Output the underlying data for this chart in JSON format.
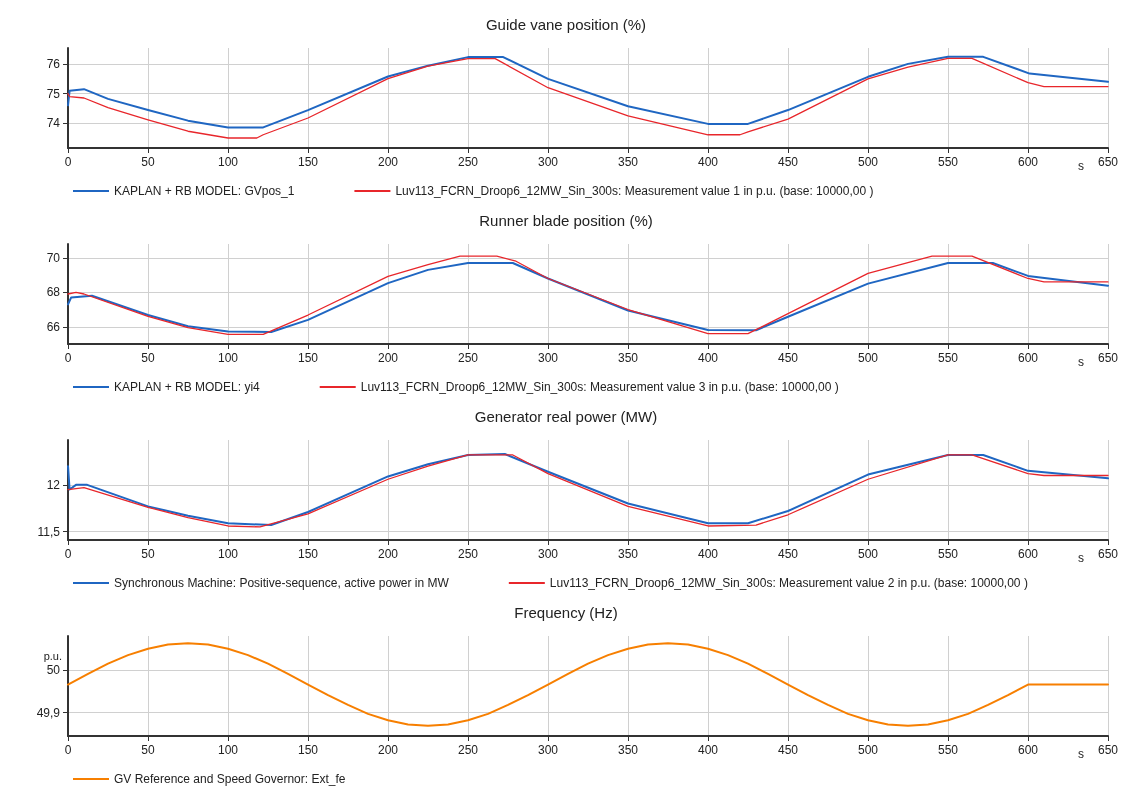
{
  "chart_data": [
    {
      "type": "line",
      "title": "Guide vane position (%)",
      "xlabel": "s",
      "xlim": [
        0,
        650
      ],
      "xticks": [
        0,
        50,
        100,
        150,
        200,
        250,
        300,
        350,
        400,
        450,
        500,
        550,
        600,
        650
      ],
      "ylim": [
        73.15,
        76.55
      ],
      "yticks": [
        74,
        75,
        76
      ],
      "grid": true,
      "legend": "bottom",
      "series": [
        {
          "name": "KAPLAN + RB MODEL: GVpos_1",
          "color": "#1f66c2",
          "x": [
            0,
            1,
            10,
            25,
            50,
            75,
            100,
            122,
            150,
            200,
            225,
            250,
            272,
            300,
            350,
            400,
            425,
            450,
            500,
            525,
            550,
            572,
            601,
            650
          ],
          "values": [
            74.6,
            75.1,
            75.15,
            74.82,
            74.44,
            74.08,
            73.85,
            73.85,
            74.44,
            75.58,
            75.95,
            76.24,
            76.24,
            75.5,
            74.57,
            73.97,
            73.97,
            74.44,
            75.57,
            76.01,
            76.25,
            76.25,
            75.68,
            75.4
          ]
        },
        {
          "name": "Luv113_FCRN_Droop6_12MW_Sin_300s: Measurement value 1 in p.u. (base: 10000,00 )",
          "color": "#e8262b",
          "x": [
            0,
            1,
            10,
            25,
            50,
            75,
            100,
            118,
            122,
            150,
            200,
            225,
            250,
            267,
            300,
            350,
            400,
            420,
            425,
            450,
            500,
            525,
            550,
            565,
            600,
            610,
            650
          ],
          "values": [
            75.0,
            74.9,
            74.85,
            74.52,
            74.11,
            73.72,
            73.49,
            73.49,
            73.6,
            74.17,
            75.51,
            75.93,
            76.19,
            76.19,
            75.2,
            74.24,
            73.6,
            73.6,
            73.7,
            74.13,
            75.5,
            75.9,
            76.2,
            76.2,
            75.37,
            75.24,
            75.24
          ]
        }
      ]
    },
    {
      "type": "line",
      "title": "Runner blade position (%)",
      "xlabel": "s",
      "xlim": [
        0,
        650
      ],
      "xticks": [
        0,
        50,
        100,
        150,
        200,
        250,
        300,
        350,
        400,
        450,
        500,
        550,
        600,
        650
      ],
      "ylim": [
        65,
        70.8
      ],
      "yticks": [
        66,
        68,
        70
      ],
      "grid": true,
      "legend": "bottom",
      "series": [
        {
          "name": "KAPLAN + RB MODEL: yi4",
          "color": "#1f66c2",
          "x": [
            0,
            2,
            15,
            50,
            75,
            100,
            127,
            150,
            200,
            225,
            250,
            278,
            300,
            350,
            400,
            430,
            450,
            500,
            550,
            578,
            600,
            650
          ],
          "values": [
            67.3,
            67.7,
            67.8,
            66.68,
            66.03,
            65.72,
            65.7,
            66.4,
            68.53,
            69.3,
            69.7,
            69.7,
            68.8,
            66.94,
            65.81,
            65.8,
            66.58,
            68.5,
            69.7,
            69.7,
            68.95,
            68.38
          ]
        },
        {
          "name": "Luv113_FCRN_Droop6_12MW_Sin_300s: Measurement value 3 in p.u. (base: 10000,00 )",
          "color": "#e8262b",
          "x": [
            0,
            5,
            10,
            50,
            75,
            100,
            122,
            150,
            200,
            225,
            245,
            268,
            280,
            300,
            350,
            400,
            425,
            450,
            500,
            540,
            565,
            600,
            610,
            650
          ],
          "values": [
            67.9,
            68.0,
            67.9,
            66.6,
            65.95,
            65.56,
            65.56,
            66.68,
            68.92,
            69.6,
            70.1,
            70.1,
            69.8,
            68.8,
            67.0,
            65.6,
            65.6,
            66.76,
            69.1,
            70.1,
            70.1,
            68.8,
            68.6,
            68.6
          ]
        }
      ]
    },
    {
      "type": "line",
      "title": "Generator real power (MW)",
      "xlabel": "s",
      "xlim": [
        0,
        650
      ],
      "xticks": [
        0,
        50,
        100,
        150,
        200,
        250,
        300,
        350,
        400,
        450,
        500,
        550,
        600,
        650
      ],
      "ylim": [
        11.41,
        12.48
      ],
      "yticks": [
        {
          "value": 11.5,
          "label": "11,5"
        },
        12
      ],
      "grid": true,
      "legend": "bottom",
      "series": [
        {
          "name": "Synchronous Machine: Positive-sequence, active power in MW",
          "color": "#1f66c2",
          "x": [
            0,
            1,
            5,
            12,
            50,
            75,
            100,
            127,
            150,
            200,
            225,
            250,
            273,
            300,
            350,
            400,
            425,
            450,
            500,
            550,
            572,
            600,
            650
          ],
          "values": [
            12.2,
            11.95,
            12.0,
            12.0,
            11.77,
            11.67,
            11.59,
            11.57,
            11.71,
            12.09,
            12.22,
            12.32,
            12.33,
            12.14,
            11.8,
            11.59,
            11.59,
            11.72,
            12.11,
            12.32,
            12.32,
            12.15,
            12.07
          ]
        },
        {
          "name": "Luv113_FCRN_Droop6_12MW_Sin_300s: Measurement value 2 in p.u. (base: 10000,00 )",
          "color": "#e8262b",
          "x": [
            0,
            10,
            50,
            75,
            100,
            120,
            150,
            200,
            225,
            250,
            278,
            300,
            350,
            400,
            430,
            450,
            500,
            550,
            565,
            600,
            610,
            650
          ],
          "values": [
            11.95,
            11.97,
            11.76,
            11.65,
            11.56,
            11.55,
            11.69,
            12.06,
            12.2,
            12.32,
            12.32,
            12.12,
            11.77,
            11.56,
            11.57,
            11.68,
            12.06,
            12.32,
            12.32,
            12.12,
            12.1,
            12.1
          ]
        }
      ]
    },
    {
      "type": "line",
      "title": "Frequency (Hz)",
      "xlabel": "s",
      "ylabel": "p.u.",
      "xlim": [
        0,
        650
      ],
      "xticks": [
        0,
        50,
        100,
        150,
        200,
        250,
        300,
        350,
        400,
        450,
        500,
        550,
        600,
        650
      ],
      "ylim": [
        49.845,
        50.08
      ],
      "yticks": [
        {
          "value": 49.9,
          "label": "49,9"
        },
        50
      ],
      "grid": true,
      "legend": "bottom",
      "series": [
        {
          "name": "GV Reference and Speed Governor: Ext_fe",
          "color": "#f77f00",
          "x": [
            0,
            12.5,
            25,
            37.5,
            50,
            62.5,
            75,
            87.5,
            100,
            112.5,
            125,
            137.5,
            150,
            162.5,
            175,
            187.5,
            200,
            212.5,
            225,
            237.5,
            250,
            262.5,
            275,
            287.5,
            300,
            312.5,
            325,
            337.5,
            350,
            362.5,
            375,
            387.5,
            400,
            412.5,
            425,
            437.5,
            450,
            462.5,
            475,
            487.5,
            500,
            512.5,
            525,
            537.5,
            550,
            562.5,
            575,
            587.5,
            600,
            650
          ],
          "values": [
            49.966,
            49.991,
            50.015,
            50.035,
            50.05,
            50.06,
            50.063,
            50.06,
            50.05,
            50.035,
            50.015,
            49.991,
            49.966,
            49.941,
            49.918,
            49.897,
            49.882,
            49.872,
            49.869,
            49.872,
            49.882,
            49.897,
            49.918,
            49.941,
            49.966,
            49.991,
            50.015,
            50.035,
            50.05,
            50.06,
            50.063,
            50.06,
            50.05,
            50.035,
            50.015,
            49.991,
            49.966,
            49.941,
            49.918,
            49.897,
            49.882,
            49.872,
            49.869,
            49.872,
            49.882,
            49.897,
            49.918,
            49.941,
            49.966,
            49.966
          ]
        }
      ]
    }
  ]
}
